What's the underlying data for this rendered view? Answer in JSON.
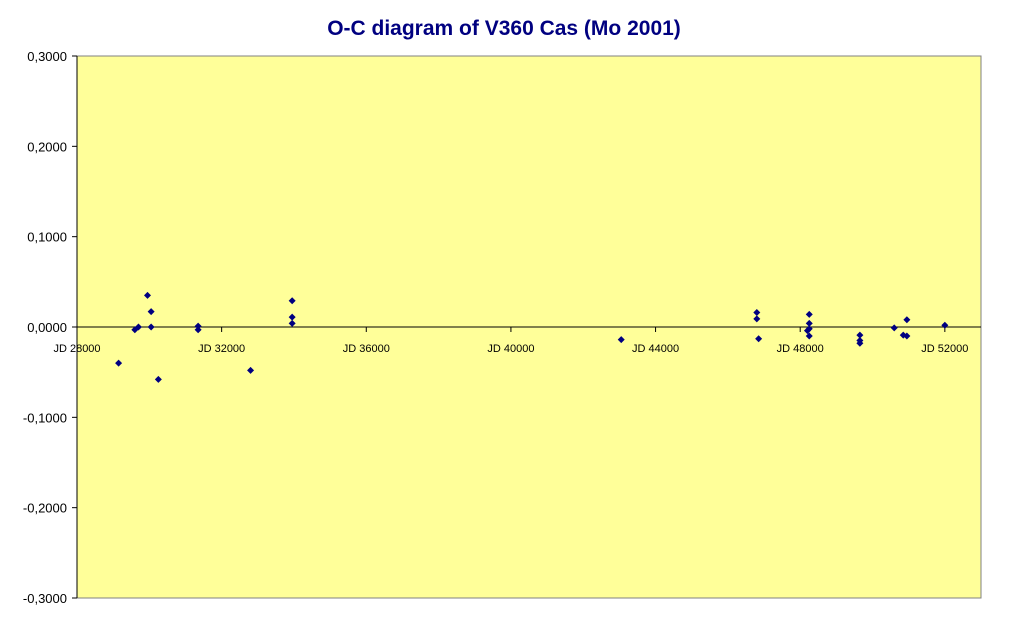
{
  "chart_data": {
    "type": "scatter",
    "title": "O-C diagram of V360 Cas  (Mo 2001)",
    "xlabel": "",
    "ylabel": "",
    "xlim": [
      28000,
      53000
    ],
    "ylim": [
      -0.3,
      0.3
    ],
    "x_ticks": [
      28000,
      32000,
      36000,
      40000,
      44000,
      48000,
      52000
    ],
    "x_tick_labels": [
      "JD 28000",
      "JD 32000",
      "JD 36000",
      "JD 40000",
      "JD 44000",
      "JD 48000",
      "JD 52000"
    ],
    "y_ticks": [
      0.3,
      0.2,
      0.1,
      0.0,
      -0.1,
      -0.2,
      -0.3
    ],
    "y_tick_labels": [
      "0,3000",
      "0,2000",
      "0,1000",
      "0,0000",
      "-0,1000",
      "-0,2000",
      "-0,3000"
    ],
    "grid": false,
    "legend": "none",
    "plot_background": "#FFFF99",
    "marker_color": "#000080",
    "series": [
      {
        "points": [
          [
            29150,
            -0.04
          ],
          [
            29600,
            -0.003
          ],
          [
            29700,
            0.0
          ],
          [
            29950,
            0.035
          ],
          [
            30050,
            0.017
          ],
          [
            30050,
            0.0
          ],
          [
            30250,
            -0.058
          ],
          [
            31350,
            0.001
          ],
          [
            31350,
            -0.003
          ],
          [
            32800,
            -0.048
          ],
          [
            33950,
            0.029
          ],
          [
            33950,
            0.011
          ],
          [
            33950,
            0.004
          ],
          [
            43050,
            -0.014
          ],
          [
            46800,
            0.016
          ],
          [
            46800,
            0.009
          ],
          [
            46850,
            -0.013
          ],
          [
            48250,
            0.014
          ],
          [
            48250,
            0.004
          ],
          [
            48250,
            -0.002
          ],
          [
            48250,
            -0.01
          ],
          [
            48200,
            -0.004
          ],
          [
            49650,
            -0.009
          ],
          [
            49650,
            -0.015
          ],
          [
            49650,
            -0.018
          ],
          [
            50600,
            -0.001
          ],
          [
            50850,
            -0.009
          ],
          [
            50950,
            0.008
          ],
          [
            50950,
            -0.01
          ],
          [
            52000,
            0.002
          ]
        ]
      }
    ]
  }
}
